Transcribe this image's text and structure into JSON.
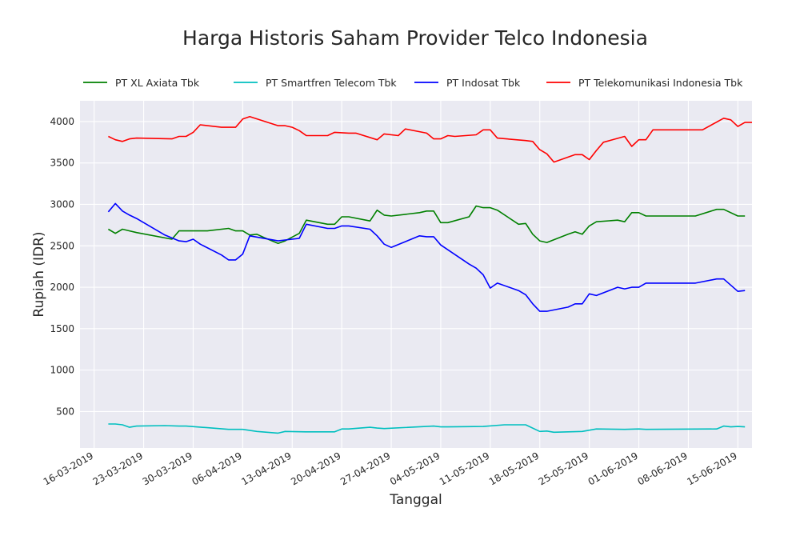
{
  "chart_data": {
    "type": "line",
    "title": "Harga Historis Saham Provider Telco Indonesia",
    "xlabel": "Tanggal",
    "ylabel": "Rupiah (IDR)",
    "xlim": [
      "2019-03-14",
      "2019-06-17"
    ],
    "ylim": [
      60,
      4250
    ],
    "grid": true,
    "legend": "top",
    "x_ticks": [
      "2019-03-16",
      "2019-03-23",
      "2019-03-30",
      "2019-04-06",
      "2019-04-13",
      "2019-04-20",
      "2019-04-27",
      "2019-05-04",
      "2019-05-11",
      "2019-05-18",
      "2019-05-25",
      "2019-06-01",
      "2019-06-08",
      "2019-06-15"
    ],
    "x_tick_labels": [
      "16-03-2019",
      "23-03-2019",
      "30-03-2019",
      "06-04-2019",
      "13-04-2019",
      "20-04-2019",
      "27-04-2019",
      "04-05-2019",
      "11-05-2019",
      "18-05-2019",
      "25-05-2019",
      "01-06-2019",
      "08-06-2019",
      "15-06-2019"
    ],
    "y_ticks": [
      500,
      1000,
      1500,
      2000,
      2500,
      3000,
      3500,
      4000
    ],
    "y_tick_labels": [
      "500",
      "1000",
      "1500",
      "2000",
      "2500",
      "3000",
      "3500",
      "4000"
    ],
    "series": [
      {
        "name": "PT XL Axiata Tbk",
        "color": "#008000",
        "points": [
          [
            "2019-03-18",
            2700
          ],
          [
            "2019-03-19",
            2650
          ],
          [
            "2019-03-20",
            2700
          ],
          [
            "2019-03-21",
            2680
          ],
          [
            "2019-03-22",
            2660
          ],
          [
            "2019-03-27",
            2580
          ],
          [
            "2019-03-28",
            2680
          ],
          [
            "2019-04-01",
            2680
          ],
          [
            "2019-04-04",
            2710
          ],
          [
            "2019-04-05",
            2680
          ],
          [
            "2019-04-06",
            2680
          ],
          [
            "2019-04-07",
            2630
          ],
          [
            "2019-04-08",
            2640
          ],
          [
            "2019-04-09",
            2600
          ],
          [
            "2019-04-11",
            2530
          ],
          [
            "2019-04-12",
            2560
          ],
          [
            "2019-04-14",
            2650
          ],
          [
            "2019-04-15",
            2810
          ],
          [
            "2019-04-18",
            2760
          ],
          [
            "2019-04-19",
            2760
          ],
          [
            "2019-04-20",
            2850
          ],
          [
            "2019-04-21",
            2850
          ],
          [
            "2019-04-24",
            2800
          ],
          [
            "2019-04-25",
            2930
          ],
          [
            "2019-04-26",
            2870
          ],
          [
            "2019-04-27",
            2860
          ],
          [
            "2019-05-01",
            2900
          ],
          [
            "2019-05-02",
            2920
          ],
          [
            "2019-05-03",
            2920
          ],
          [
            "2019-05-04",
            2780
          ],
          [
            "2019-05-05",
            2780
          ],
          [
            "2019-05-08",
            2850
          ],
          [
            "2019-05-09",
            2980
          ],
          [
            "2019-05-10",
            2960
          ],
          [
            "2019-05-11",
            2960
          ],
          [
            "2019-05-12",
            2930
          ],
          [
            "2019-05-15",
            2760
          ],
          [
            "2019-05-16",
            2770
          ],
          [
            "2019-05-17",
            2640
          ],
          [
            "2019-05-18",
            2560
          ],
          [
            "2019-05-19",
            2540
          ],
          [
            "2019-05-22",
            2640
          ],
          [
            "2019-05-23",
            2670
          ],
          [
            "2019-05-24",
            2640
          ],
          [
            "2019-05-25",
            2740
          ],
          [
            "2019-05-26",
            2790
          ],
          [
            "2019-05-29",
            2810
          ],
          [
            "2019-05-30",
            2790
          ],
          [
            "2019-05-31",
            2900
          ],
          [
            "2019-06-01",
            2900
          ],
          [
            "2019-06-02",
            2860
          ],
          [
            "2019-06-09",
            2860
          ],
          [
            "2019-06-12",
            2940
          ],
          [
            "2019-06-13",
            2940
          ],
          [
            "2019-06-15",
            2860
          ],
          [
            "2019-06-16",
            2860
          ]
        ]
      },
      {
        "name": "PT Smartfren Telecom Tbk",
        "color": "#00BFBF",
        "points": [
          [
            "2019-03-18",
            350
          ],
          [
            "2019-03-19",
            350
          ],
          [
            "2019-03-20",
            340
          ],
          [
            "2019-03-21",
            310
          ],
          [
            "2019-03-22",
            325
          ],
          [
            "2019-03-26",
            330
          ],
          [
            "2019-03-28",
            325
          ],
          [
            "2019-03-29",
            325
          ],
          [
            "2019-04-01",
            305
          ],
          [
            "2019-04-04",
            285
          ],
          [
            "2019-04-06",
            285
          ],
          [
            "2019-04-08",
            260
          ],
          [
            "2019-04-11",
            240
          ],
          [
            "2019-04-12",
            260
          ],
          [
            "2019-04-15",
            255
          ],
          [
            "2019-04-19",
            255
          ],
          [
            "2019-04-20",
            290
          ],
          [
            "2019-04-21",
            290
          ],
          [
            "2019-04-24",
            310
          ],
          [
            "2019-04-25",
            300
          ],
          [
            "2019-04-26",
            295
          ],
          [
            "2019-05-03",
            325
          ],
          [
            "2019-05-04",
            315
          ],
          [
            "2019-05-05",
            315
          ],
          [
            "2019-05-10",
            320
          ],
          [
            "2019-05-13",
            340
          ],
          [
            "2019-05-16",
            340
          ],
          [
            "2019-05-18",
            260
          ],
          [
            "2019-05-19",
            265
          ],
          [
            "2019-05-20",
            250
          ],
          [
            "2019-05-24",
            260
          ],
          [
            "2019-05-26",
            290
          ],
          [
            "2019-05-30",
            285
          ],
          [
            "2019-06-01",
            290
          ],
          [
            "2019-06-02",
            285
          ],
          [
            "2019-06-12",
            290
          ],
          [
            "2019-06-13",
            325
          ],
          [
            "2019-06-14",
            315
          ],
          [
            "2019-06-15",
            320
          ],
          [
            "2019-06-16",
            315
          ]
        ]
      },
      {
        "name": "PT Indosat Tbk",
        "color": "#0000FF",
        "points": [
          [
            "2019-03-18",
            2910
          ],
          [
            "2019-03-19",
            3010
          ],
          [
            "2019-03-20",
            2920
          ],
          [
            "2019-03-21",
            2870
          ],
          [
            "2019-03-22",
            2830
          ],
          [
            "2019-03-26",
            2630
          ],
          [
            "2019-03-28",
            2560
          ],
          [
            "2019-03-29",
            2550
          ],
          [
            "2019-03-30",
            2580
          ],
          [
            "2019-03-31",
            2520
          ],
          [
            "2019-04-03",
            2390
          ],
          [
            "2019-04-04",
            2330
          ],
          [
            "2019-04-05",
            2330
          ],
          [
            "2019-04-06",
            2400
          ],
          [
            "2019-04-07",
            2620
          ],
          [
            "2019-04-11",
            2560
          ],
          [
            "2019-04-12",
            2570
          ],
          [
            "2019-04-14",
            2590
          ],
          [
            "2019-04-15",
            2760
          ],
          [
            "2019-04-18",
            2710
          ],
          [
            "2019-04-19",
            2710
          ],
          [
            "2019-04-20",
            2740
          ],
          [
            "2019-04-21",
            2740
          ],
          [
            "2019-04-24",
            2700
          ],
          [
            "2019-04-25",
            2620
          ],
          [
            "2019-04-26",
            2520
          ],
          [
            "2019-04-27",
            2480
          ],
          [
            "2019-05-01",
            2620
          ],
          [
            "2019-05-02",
            2610
          ],
          [
            "2019-05-03",
            2610
          ],
          [
            "2019-05-04",
            2510
          ],
          [
            "2019-05-08",
            2280
          ],
          [
            "2019-05-09",
            2230
          ],
          [
            "2019-05-10",
            2150
          ],
          [
            "2019-05-11",
            1990
          ],
          [
            "2019-05-12",
            2050
          ],
          [
            "2019-05-15",
            1960
          ],
          [
            "2019-05-16",
            1910
          ],
          [
            "2019-05-17",
            1800
          ],
          [
            "2019-05-18",
            1710
          ],
          [
            "2019-05-19",
            1710
          ],
          [
            "2019-05-22",
            1760
          ],
          [
            "2019-05-23",
            1800
          ],
          [
            "2019-05-24",
            1800
          ],
          [
            "2019-05-25",
            1920
          ],
          [
            "2019-05-26",
            1900
          ],
          [
            "2019-05-29",
            2000
          ],
          [
            "2019-05-30",
            1980
          ],
          [
            "2019-05-31",
            2000
          ],
          [
            "2019-06-01",
            2000
          ],
          [
            "2019-06-02",
            2050
          ],
          [
            "2019-06-09",
            2050
          ],
          [
            "2019-06-12",
            2100
          ],
          [
            "2019-06-13",
            2100
          ],
          [
            "2019-06-15",
            1950
          ],
          [
            "2019-06-16",
            1960
          ]
        ]
      },
      {
        "name": "PT Telekomunikasi Indonesia Tbk",
        "color": "#FF0000",
        "points": [
          [
            "2019-03-18",
            3820
          ],
          [
            "2019-03-19",
            3780
          ],
          [
            "2019-03-20",
            3760
          ],
          [
            "2019-03-21",
            3790
          ],
          [
            "2019-03-22",
            3800
          ],
          [
            "2019-03-27",
            3790
          ],
          [
            "2019-03-28",
            3820
          ],
          [
            "2019-03-29",
            3820
          ],
          [
            "2019-03-30",
            3870
          ],
          [
            "2019-03-31",
            3960
          ],
          [
            "2019-04-03",
            3930
          ],
          [
            "2019-04-05",
            3930
          ],
          [
            "2019-04-06",
            4030
          ],
          [
            "2019-04-07",
            4060
          ],
          [
            "2019-04-11",
            3950
          ],
          [
            "2019-04-12",
            3950
          ],
          [
            "2019-04-13",
            3930
          ],
          [
            "2019-04-14",
            3890
          ],
          [
            "2019-04-15",
            3830
          ],
          [
            "2019-04-18",
            3830
          ],
          [
            "2019-04-19",
            3870
          ],
          [
            "2019-04-21",
            3860
          ],
          [
            "2019-04-22",
            3860
          ],
          [
            "2019-04-25",
            3780
          ],
          [
            "2019-04-26",
            3850
          ],
          [
            "2019-04-28",
            3830
          ],
          [
            "2019-04-29",
            3910
          ],
          [
            "2019-05-02",
            3860
          ],
          [
            "2019-05-03",
            3790
          ],
          [
            "2019-05-04",
            3790
          ],
          [
            "2019-05-05",
            3830
          ],
          [
            "2019-05-06",
            3820
          ],
          [
            "2019-05-09",
            3840
          ],
          [
            "2019-05-10",
            3900
          ],
          [
            "2019-05-11",
            3900
          ],
          [
            "2019-05-12",
            3800
          ],
          [
            "2019-05-16",
            3770
          ],
          [
            "2019-05-17",
            3760
          ],
          [
            "2019-05-18",
            3660
          ],
          [
            "2019-05-19",
            3610
          ],
          [
            "2019-05-20",
            3510
          ],
          [
            "2019-05-23",
            3600
          ],
          [
            "2019-05-24",
            3600
          ],
          [
            "2019-05-25",
            3540
          ],
          [
            "2019-05-26",
            3650
          ],
          [
            "2019-05-27",
            3750
          ],
          [
            "2019-05-30",
            3820
          ],
          [
            "2019-05-31",
            3700
          ],
          [
            "2019-06-01",
            3780
          ],
          [
            "2019-06-02",
            3780
          ],
          [
            "2019-06-03",
            3900
          ],
          [
            "2019-06-10",
            3900
          ],
          [
            "2019-06-13",
            4040
          ],
          [
            "2019-06-14",
            4020
          ],
          [
            "2019-06-15",
            3940
          ],
          [
            "2019-06-16",
            3990
          ],
          [
            "2019-06-17",
            3990
          ]
        ]
      }
    ]
  }
}
